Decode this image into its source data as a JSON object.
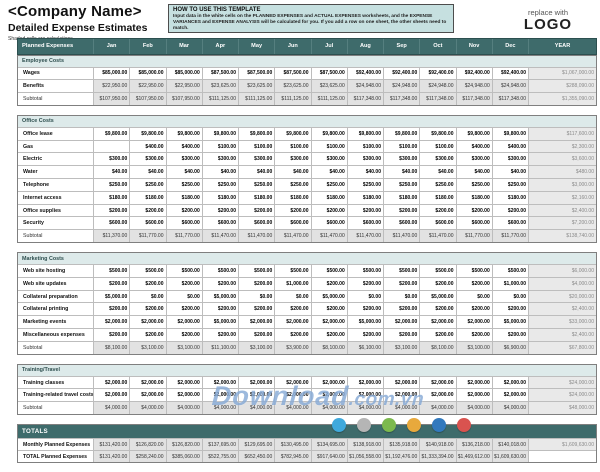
{
  "header": {
    "company_name": "<Company Name>",
    "doc_title": "Detailed Expense Estimates",
    "note": "Shaded cells are calculations.",
    "howto_title": "HOW TO USE THIS TEMPLATE",
    "howto_body": "Input data in the white cells on the PLANNED EXPENSES and ACTUAL EXPENSES worksheets, and the EXPENSE VARIANCES and EXPENSE ANALYSIS will be calculated for you.  If you add a row on one sheet, the other sheets need to match.",
    "logo_small": "replace with",
    "logo_big": "LOGO"
  },
  "table": {
    "label_header": "Planned Expenses",
    "months": [
      "Jan",
      "Feb",
      "Mar",
      "Apr",
      "May",
      "Jun",
      "Jul",
      "Aug",
      "Sep",
      "Oct",
      "Nov",
      "Dec"
    ],
    "year_header": "YEAR"
  },
  "sections": [
    {
      "title": "Employee Costs",
      "rows": [
        {
          "label": "Wages",
          "type": "input",
          "values": [
            "$85,000.00",
            "$85,000.00",
            "$85,000.00",
            "$87,500.00",
            "$87,500.00",
            "$87,500.00",
            "$87,500.00",
            "$92,400.00",
            "$92,400.00",
            "$92,400.00",
            "$92,400.00",
            "$92,400.00"
          ],
          "year": "$1,067,000.00"
        },
        {
          "label": "Benefits",
          "type": "calc",
          "values": [
            "$22,950.00",
            "$22,950.00",
            "$22,950.00",
            "$23,625.00",
            "$23,625.00",
            "$23,625.00",
            "$23,625.00",
            "$24,948.00",
            "$24,948.00",
            "$24,948.00",
            "$24,948.00",
            "$24,948.00"
          ],
          "year": "$288,090.00"
        },
        {
          "label": "Subtotal",
          "type": "subtotal",
          "values": [
            "$107,950.00",
            "$107,950.00",
            "$107,950.00",
            "$111,125.00",
            "$111,125.00",
            "$111,125.00",
            "$111,125.00",
            "$117,348.00",
            "$117,348.00",
            "$117,348.00",
            "$117,348.00",
            "$117,348.00"
          ],
          "year": "$1,355,090.00"
        }
      ]
    },
    {
      "title": "Office Costs",
      "rows": [
        {
          "label": "Office lease",
          "type": "input",
          "values": [
            "$9,800.00",
            "$9,800.00",
            "$9,800.00",
            "$9,800.00",
            "$9,800.00",
            "$9,800.00",
            "$9,800.00",
            "$9,800.00",
            "$9,800.00",
            "$9,800.00",
            "$9,800.00",
            "$9,800.00"
          ],
          "year": "$117,600.00"
        },
        {
          "label": "Gas",
          "type": "input",
          "values": [
            "",
            "$400.00",
            "$400.00",
            "$100.00",
            "$100.00",
            "$100.00",
            "$100.00",
            "$100.00",
            "$100.00",
            "$100.00",
            "$400.00",
            "$400.00"
          ],
          "year": "$2,300.00"
        },
        {
          "label": "Electric",
          "type": "input",
          "values": [
            "$300.00",
            "$300.00",
            "$300.00",
            "$300.00",
            "$300.00",
            "$300.00",
            "$300.00",
            "$300.00",
            "$300.00",
            "$300.00",
            "$300.00",
            "$300.00"
          ],
          "year": "$3,600.00"
        },
        {
          "label": "Water",
          "type": "input",
          "values": [
            "$40.00",
            "$40.00",
            "$40.00",
            "$40.00",
            "$40.00",
            "$40.00",
            "$40.00",
            "$40.00",
            "$40.00",
            "$40.00",
            "$40.00",
            "$40.00"
          ],
          "year": "$480.00"
        },
        {
          "label": "Telephone",
          "type": "input",
          "values": [
            "$250.00",
            "$250.00",
            "$250.00",
            "$250.00",
            "$250.00",
            "$250.00",
            "$250.00",
            "$250.00",
            "$250.00",
            "$250.00",
            "$250.00",
            "$250.00"
          ],
          "year": "$3,000.00"
        },
        {
          "label": "Internet access",
          "type": "input",
          "values": [
            "$180.00",
            "$180.00",
            "$180.00",
            "$180.00",
            "$180.00",
            "$180.00",
            "$180.00",
            "$180.00",
            "$180.00",
            "$180.00",
            "$180.00",
            "$180.00"
          ],
          "year": "$2,160.00"
        },
        {
          "label": "Office supplies",
          "type": "input",
          "values": [
            "$200.00",
            "$200.00",
            "$200.00",
            "$200.00",
            "$200.00",
            "$200.00",
            "$200.00",
            "$200.00",
            "$200.00",
            "$200.00",
            "$200.00",
            "$200.00"
          ],
          "year": "$2,400.00"
        },
        {
          "label": "Security",
          "type": "input",
          "values": [
            "$600.00",
            "$600.00",
            "$600.00",
            "$600.00",
            "$600.00",
            "$600.00",
            "$600.00",
            "$600.00",
            "$600.00",
            "$600.00",
            "$600.00",
            "$600.00"
          ],
          "year": "$7,200.00"
        },
        {
          "label": "Subtotal",
          "type": "subtotal",
          "values": [
            "$11,370.00",
            "$11,770.00",
            "$11,770.00",
            "$11,470.00",
            "$11,470.00",
            "$11,470.00",
            "$11,470.00",
            "$11,470.00",
            "$11,470.00",
            "$11,470.00",
            "$11,770.00",
            "$11,770.00"
          ],
          "year": "$138,740.00"
        }
      ]
    },
    {
      "title": "Marketing Costs",
      "rows": [
        {
          "label": "Web site hosting",
          "type": "input",
          "values": [
            "$500.00",
            "$500.00",
            "$500.00",
            "$500.00",
            "$500.00",
            "$500.00",
            "$500.00",
            "$500.00",
            "$500.00",
            "$500.00",
            "$500.00",
            "$500.00"
          ],
          "year": "$6,000.00"
        },
        {
          "label": "Web site updates",
          "type": "input",
          "values": [
            "$200.00",
            "$200.00",
            "$200.00",
            "$200.00",
            "$200.00",
            "$1,000.00",
            "$200.00",
            "$200.00",
            "$200.00",
            "$200.00",
            "$200.00",
            "$1,000.00"
          ],
          "year": "$4,000.00"
        },
        {
          "label": "Collateral preparation",
          "type": "input",
          "values": [
            "$5,000.00",
            "$0.00",
            "$0.00",
            "$5,000.00",
            "$0.00",
            "$0.00",
            "$5,000.00",
            "$0.00",
            "$0.00",
            "$5,000.00",
            "$0.00",
            "$0.00"
          ],
          "year": "$20,000.00"
        },
        {
          "label": "Collateral printing",
          "type": "input",
          "values": [
            "$200.00",
            "$200.00",
            "$200.00",
            "$200.00",
            "$200.00",
            "$200.00",
            "$200.00",
            "$200.00",
            "$200.00",
            "$200.00",
            "$200.00",
            "$200.00"
          ],
          "year": "$2,400.00"
        },
        {
          "label": "Marketing events",
          "type": "input",
          "values": [
            "$2,000.00",
            "$2,000.00",
            "$2,000.00",
            "$5,000.00",
            "$2,000.00",
            "$2,000.00",
            "$2,000.00",
            "$5,000.00",
            "$2,000.00",
            "$2,000.00",
            "$2,000.00",
            "$5,000.00"
          ],
          "year": "$33,000.00"
        },
        {
          "label": "Miscellaneous expenses",
          "type": "input",
          "values": [
            "$200.00",
            "$200.00",
            "$200.00",
            "$200.00",
            "$200.00",
            "$200.00",
            "$200.00",
            "$200.00",
            "$200.00",
            "$200.00",
            "$200.00",
            "$200.00"
          ],
          "year": "$2,400.00"
        },
        {
          "label": "Subtotal",
          "type": "subtotal",
          "values": [
            "$8,100.00",
            "$3,100.00",
            "$3,100.00",
            "$11,100.00",
            "$3,100.00",
            "$3,900.00",
            "$8,100.00",
            "$6,100.00",
            "$3,100.00",
            "$8,100.00",
            "$3,100.00",
            "$6,900.00"
          ],
          "year": "$67,800.00"
        }
      ]
    },
    {
      "title": "Training/Travel",
      "rows": [
        {
          "label": "Training classes",
          "type": "input",
          "values": [
            "$2,000.00",
            "$2,000.00",
            "$2,000.00",
            "$2,000.00",
            "$2,000.00",
            "$2,000.00",
            "$2,000.00",
            "$2,000.00",
            "$2,000.00",
            "$2,000.00",
            "$2,000.00",
            "$2,000.00"
          ],
          "year": "$24,000.00"
        },
        {
          "label": "Training-related travel costs",
          "type": "input",
          "values": [
            "$2,000.00",
            "$2,000.00",
            "$2,000.00",
            "$2,000.00",
            "$2,000.00",
            "$2,000.00",
            "$2,000.00",
            "$2,000.00",
            "$2,000.00",
            "$2,000.00",
            "$2,000.00",
            "$2,000.00"
          ],
          "year": "$24,000.00"
        },
        {
          "label": "Subtotal",
          "type": "subtotal",
          "values": [
            "$4,000.00",
            "$4,000.00",
            "$4,000.00",
            "$4,000.00",
            "$4,000.00",
            "$4,000.00",
            "$4,000.00",
            "$4,000.00",
            "$4,000.00",
            "$4,000.00",
            "$4,000.00",
            "$4,000.00"
          ],
          "year": "$48,000.00"
        }
      ]
    }
  ],
  "totals": {
    "title": "TOTALS",
    "rows": [
      {
        "label": "Monthly Planned Expenses",
        "values": [
          "$131,420.00",
          "$126,820.00",
          "$126,820.00",
          "$137,695.00",
          "$129,695.00",
          "$130,495.00",
          "$134,695.00",
          "$138,918.00",
          "$135,918.00",
          "$140,918.00",
          "$136,218.00",
          "$140,018.00"
        ],
        "year": "$1,609,630.00"
      },
      {
        "label": "TOTAL Planned Expenses",
        "values": [
          "$131,420.00",
          "$258,240.00",
          "$385,060.00",
          "$522,755.00",
          "$652,450.00",
          "$782,945.00",
          "$917,640.00",
          "$1,056,558.00",
          "$1,192,476.00",
          "$1,333,394.00",
          "$1,469,612.00",
          "$1,609,630.00"
        ],
        "year": ""
      }
    ]
  },
  "watermark": {
    "text": "Download",
    "suffix": ".com.vn",
    "dot_colors": [
      "#3fa9dc",
      "#b5b5b5",
      "#7cb94e",
      "#e8a93c",
      "#3279bd",
      "#d9534f"
    ]
  },
  "colors": {
    "header_teal": "#3e6b6b",
    "section_bg": "#ddeaea",
    "calc_bg": "#e2e2e2",
    "howto_bg": "#c6e0e0",
    "watermark_blue": "#4a7fc1"
  }
}
